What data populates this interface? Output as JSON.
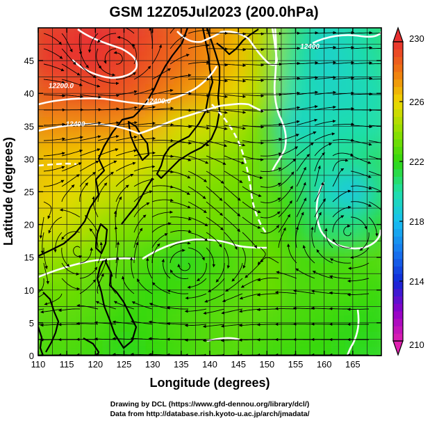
{
  "chart_data": {
    "type": "heatmap",
    "title": "GSM 12Z05Jul2023 (200.0hPa)",
    "xlabel": "Longitude (degrees)",
    "ylabel": "Latitude  (degrees)",
    "xlim": [
      110,
      170
    ],
    "ylim": [
      0,
      50
    ],
    "x_ticks": [
      "110",
      "115",
      "120",
      "125",
      "130",
      "135",
      "140",
      "145",
      "150",
      "155",
      "160",
      "165"
    ],
    "y_ticks": [
      "0",
      "5",
      "10",
      "15",
      "20",
      "25",
      "30",
      "35",
      "40",
      "45"
    ],
    "colorbar": {
      "min": 210,
      "max": 230,
      "ticks": [
        "230",
        "226",
        "222",
        "218",
        "214",
        "210"
      ],
      "stops": [
        {
          "value": 210,
          "color": "#e020b0"
        },
        {
          "value": 212,
          "color": "#9000c8"
        },
        {
          "value": 214,
          "color": "#1028d8"
        },
        {
          "value": 216,
          "color": "#1878f0"
        },
        {
          "value": 218,
          "color": "#18c0f0"
        },
        {
          "value": 220,
          "color": "#20e0a8"
        },
        {
          "value": 222,
          "color": "#30d810"
        },
        {
          "value": 224,
          "color": "#90e000"
        },
        {
          "value": 226,
          "color": "#f0d800"
        },
        {
          "value": 228,
          "color": "#f07810"
        },
        {
          "value": 230,
          "color": "#e83030"
        }
      ]
    },
    "temperature_field_K": {
      "lon": [
        110,
        115,
        120,
        125,
        130,
        135,
        140,
        145,
        150,
        155,
        160,
        165,
        170
      ],
      "lat": [
        50,
        45,
        40,
        35,
        30,
        25,
        20,
        15,
        10,
        5,
        0
      ],
      "values": [
        [
          229.5,
          229.8,
          230.0,
          229.8,
          229.3,
          228.5,
          227.6,
          226.8,
          224.6,
          220.6,
          219.2,
          219.8,
          220.6
        ],
        [
          229.6,
          229.9,
          229.9,
          229.5,
          229.0,
          228.3,
          227.6,
          226.5,
          224.2,
          220.2,
          219.0,
          219.5,
          220.2
        ],
        [
          228.8,
          229.0,
          229.2,
          229.0,
          228.4,
          227.5,
          226.8,
          225.8,
          224.0,
          219.8,
          219.3,
          219.4,
          219.8
        ],
        [
          227.6,
          227.5,
          227.6,
          227.5,
          226.9,
          225.5,
          225.2,
          224.5,
          222.7,
          219.2,
          219.6,
          219.8,
          220.0
        ],
        [
          226.6,
          226.4,
          226.2,
          226.0,
          225.3,
          224.6,
          224.2,
          223.7,
          223.0,
          220.5,
          220.2,
          220.3,
          220.8
        ],
        [
          226.4,
          225.8,
          225.3,
          225.0,
          224.4,
          223.8,
          223.6,
          223.3,
          223.0,
          221.7,
          219.5,
          218.4,
          220.6
        ],
        [
          225.7,
          225.3,
          224.4,
          223.7,
          223.4,
          223.2,
          223.4,
          223.0,
          222.9,
          222.0,
          220.7,
          220.5,
          221.8
        ],
        [
          224.3,
          224.0,
          223.5,
          223.0,
          222.5,
          221.8,
          222.2,
          222.8,
          223.2,
          222.6,
          222.4,
          222.6,
          222.8
        ],
        [
          223.2,
          223.3,
          222.9,
          222.5,
          222.0,
          222.3,
          222.6,
          222.8,
          223.2,
          222.6,
          222.6,
          222.4,
          222.2
        ],
        [
          222.8,
          222.9,
          222.6,
          222.0,
          222.2,
          222.6,
          222.8,
          223.0,
          222.8,
          222.5,
          222.3,
          221.9,
          221.9
        ],
        [
          222.5,
          222.6,
          222.2,
          221.8,
          222.0,
          222.4,
          222.7,
          222.7,
          222.4,
          222.2,
          222.0,
          221.8,
          221.7
        ]
      ]
    },
    "contour_labels": [
      {
        "text": "12200.0",
        "lon": 114,
        "lat": 40.8
      },
      {
        "text": "12400.0",
        "lon": 131,
        "lat": 38.5
      },
      {
        "text": "12400",
        "lon": 116.5,
        "lat": 35
      },
      {
        "text": "12400",
        "lon": 157.5,
        "lat": 46.8
      }
    ]
  },
  "credits": {
    "line1": "Drawing by DCL (https://www.gfd-dennou.org/library/dcl/)",
    "line2": "Data from http://database.rish.kyoto-u.ac.jp/arch/jmadata/"
  }
}
